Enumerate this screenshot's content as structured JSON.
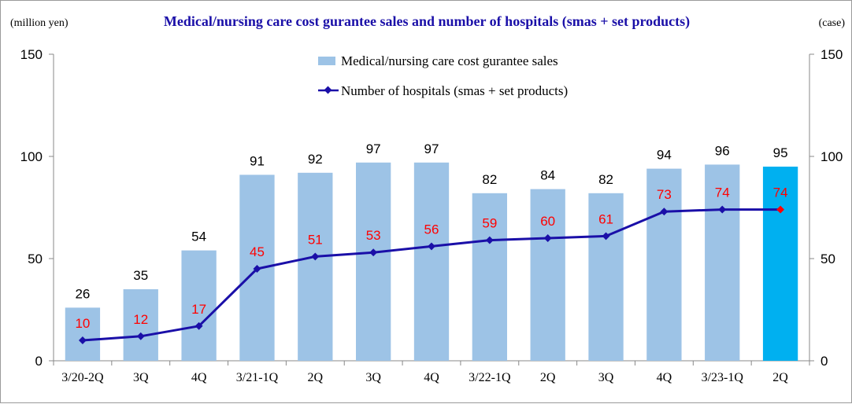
{
  "chart_data": {
    "type": "bar",
    "title": "Medical/nursing care cost gurantee sales and number of hospitals (smas + set products)",
    "y_left_label": "(million yen)",
    "y_right_label": "(case)",
    "categories": [
      "3/20-2Q",
      "3Q",
      "4Q",
      "3/21-1Q",
      "2Q",
      "3Q",
      "4Q",
      "3/22-1Q",
      "2Q",
      "3Q",
      "4Q",
      "3/23-1Q",
      "2Q"
    ],
    "ylim_left": [
      0,
      150
    ],
    "ylim_right": [
      0,
      150
    ],
    "yticks": [
      "0",
      "50",
      "100",
      "150"
    ],
    "legend_position": "top-center",
    "grid": false,
    "series": [
      {
        "name": "Medical/nursing care cost gurantee sales",
        "type": "bar",
        "axis": "left",
        "values": [
          26,
          35,
          54,
          91,
          92,
          97,
          97,
          82,
          84,
          82,
          94,
          96,
          95
        ],
        "color": "#9dc3e6",
        "highlight_color": "#00b0f0",
        "highlight_index": 12
      },
      {
        "name": "Number of hospitals (smas + set products)",
        "type": "line",
        "axis": "right",
        "values": [
          10,
          12,
          17,
          45,
          51,
          53,
          56,
          59,
          60,
          61,
          73,
          74,
          74
        ],
        "color": "#1a0fa8",
        "label_color": "#ff0000",
        "highlight_marker_color": "#ff0000",
        "highlight_index": 12
      }
    ]
  }
}
